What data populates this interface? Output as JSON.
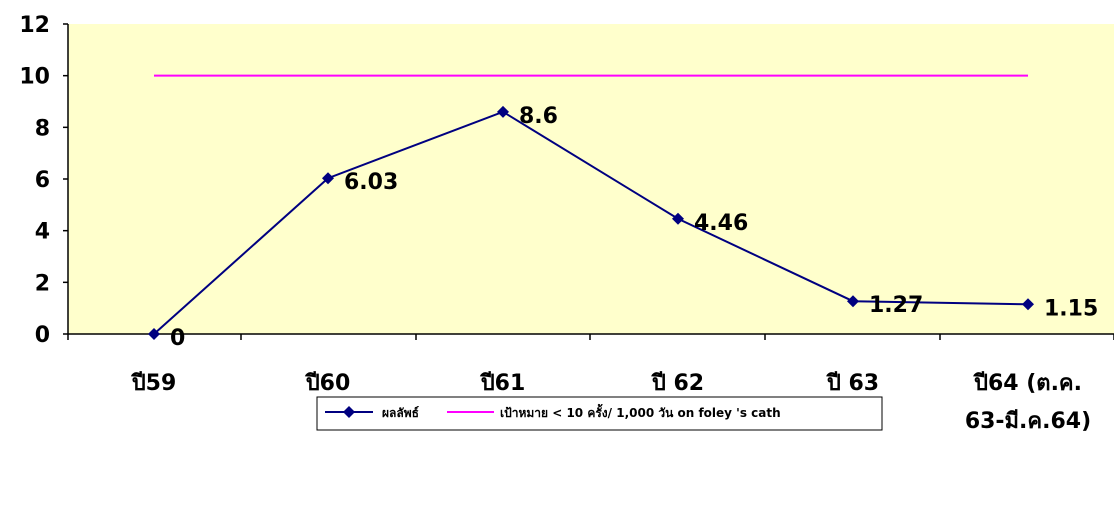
{
  "chart_data": {
    "type": "line",
    "categories": [
      "ปี59",
      "ปี60",
      "ปี61",
      "ปี 62",
      "ปี 63",
      "ปี64 (ต.ค. 63-มี.ค.64)"
    ],
    "category_lines": [
      [
        "ปี59"
      ],
      [
        "ปี60"
      ],
      [
        "ปี61"
      ],
      [
        "ปี 62"
      ],
      [
        "ปี 63"
      ],
      [
        "ปี64 (ต.ค.",
        "63-มี.ค.64)"
      ]
    ],
    "series": [
      {
        "name": "ผลลัพธ์",
        "values": [
          0,
          6.03,
          8.6,
          4.46,
          1.27,
          1.15
        ],
        "labels": [
          "0",
          "6.03",
          "8.6",
          "4.46",
          "1.27",
          "1.15"
        ],
        "color": "#000080",
        "marker": "diamond"
      },
      {
        "name": "เป้าหมาย < 10 ครั้ง/ 1,000 วัน on foley 's cath",
        "values": [
          10,
          10,
          10,
          10,
          10,
          10
        ],
        "color": "#FF00FF",
        "marker": "none"
      }
    ],
    "ylim": [
      0,
      12
    ],
    "yticks": [
      0,
      2,
      4,
      6,
      8,
      10,
      12
    ],
    "ytick_labels": [
      "0",
      "2",
      "4",
      "6",
      "8",
      "10",
      "12"
    ],
    "grid": false,
    "plot_background": "#FFFFCC",
    "legend_position": "bottom"
  }
}
